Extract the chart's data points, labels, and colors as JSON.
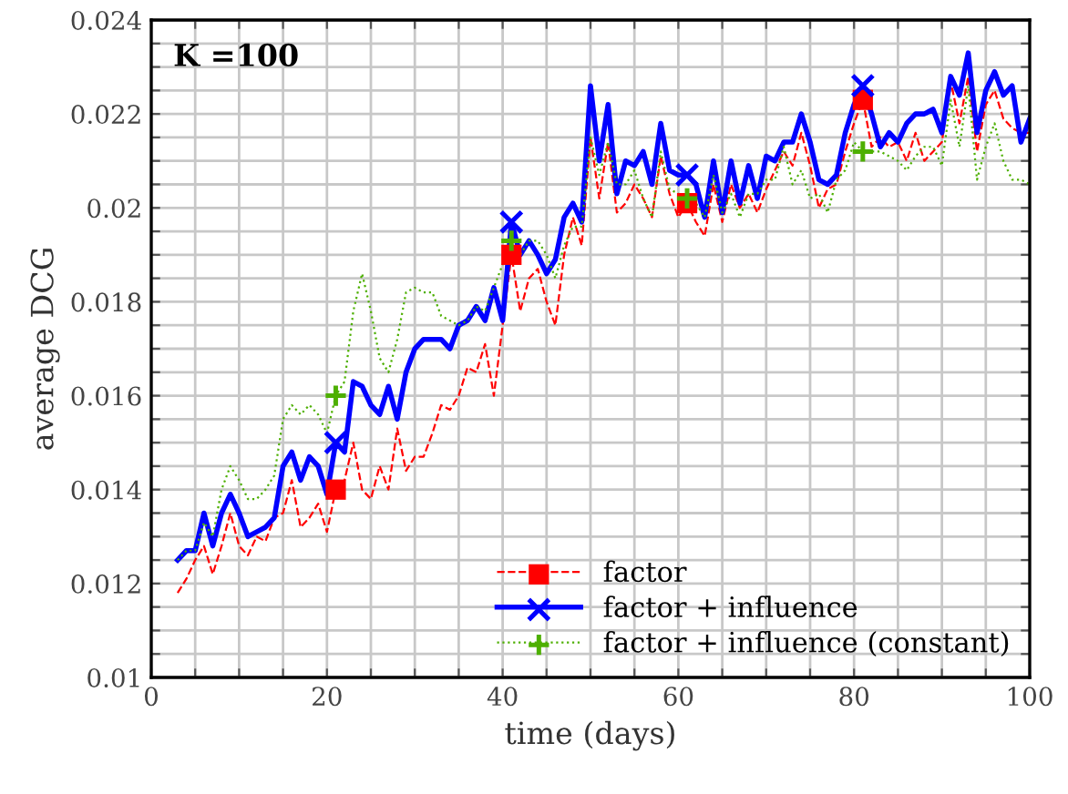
{
  "chart_data": {
    "type": "line",
    "xlabel": "time (days)",
    "ylabel": "average DCG",
    "annotations": [
      "K =100"
    ],
    "x": [
      3,
      4,
      5,
      6,
      7,
      8,
      9,
      10,
      11,
      12,
      13,
      14,
      15,
      16,
      17,
      18,
      19,
      20,
      21,
      22,
      23,
      24,
      25,
      26,
      27,
      28,
      29,
      30,
      31,
      32,
      33,
      34,
      35,
      36,
      37,
      38,
      39,
      40,
      41,
      42,
      43,
      44,
      45,
      46,
      47,
      48,
      49,
      50,
      51,
      52,
      53,
      54,
      55,
      56,
      57,
      58,
      59,
      60,
      61,
      62,
      63,
      64,
      65,
      66,
      67,
      68,
      69,
      70,
      71,
      72,
      73,
      74,
      75,
      76,
      77,
      78,
      79,
      80,
      81,
      82,
      83,
      84,
      85,
      86,
      87,
      88,
      89,
      90,
      91,
      92,
      93,
      94,
      95,
      96,
      97,
      98,
      99,
      100
    ],
    "series": [
      {
        "name": "factor",
        "color": "#ff0000",
        "line_style": "dashed",
        "values": [
          0.0118,
          0.0121,
          0.0125,
          0.0128,
          0.0122,
          0.0128,
          0.0135,
          0.0128,
          0.0126,
          0.013,
          0.0129,
          0.0134,
          0.0135,
          0.0142,
          0.0132,
          0.0134,
          0.0137,
          0.0131,
          0.014,
          0.0142,
          0.015,
          0.014,
          0.0138,
          0.0145,
          0.014,
          0.0153,
          0.0144,
          0.0147,
          0.0147,
          0.0152,
          0.0158,
          0.0157,
          0.016,
          0.0166,
          0.0165,
          0.0171,
          0.016,
          0.0175,
          0.019,
          0.0178,
          0.0185,
          0.0187,
          0.018,
          0.0175,
          0.019,
          0.0198,
          0.0192,
          0.0215,
          0.0202,
          0.0214,
          0.0199,
          0.0201,
          0.0205,
          0.0202,
          0.0198,
          0.0211,
          0.0203,
          0.0198,
          0.0201,
          0.0197,
          0.0194,
          0.0205,
          0.0197,
          0.0205,
          0.02,
          0.0203,
          0.0199,
          0.0204,
          0.0208,
          0.0212,
          0.0209,
          0.0216,
          0.0209,
          0.02,
          0.0204,
          0.0205,
          0.0212,
          0.0218,
          0.0223,
          0.0213,
          0.0215,
          0.0213,
          0.0214,
          0.021,
          0.0216,
          0.021,
          0.0212,
          0.0214,
          0.0227,
          0.0218,
          0.0228,
          0.0212,
          0.0222,
          0.0225,
          0.0219,
          0.0217,
          0.0216,
          0.0216
        ]
      },
      {
        "type": "scatter",
        "color": "#ff0000",
        "marker": "square",
        "x": [
          21,
          41,
          61,
          81
        ],
        "values": [
          0.014,
          0.019,
          0.0201,
          0.0223
        ]
      },
      {
        "name": "factor + influence",
        "color": "#0000ff",
        "line_style": "solid",
        "values": [
          0.0125,
          0.0127,
          0.0127,
          0.0135,
          0.0128,
          0.0135,
          0.0139,
          0.0135,
          0.013,
          0.0131,
          0.0132,
          0.0134,
          0.0145,
          0.0148,
          0.0142,
          0.0147,
          0.0145,
          0.0139,
          0.015,
          0.0148,
          0.0163,
          0.0162,
          0.0158,
          0.0156,
          0.0162,
          0.0155,
          0.0165,
          0.017,
          0.0172,
          0.0172,
          0.0172,
          0.017,
          0.0175,
          0.0176,
          0.0179,
          0.0176,
          0.0183,
          0.0176,
          0.0197,
          0.019,
          0.0193,
          0.019,
          0.0186,
          0.0189,
          0.0198,
          0.0201,
          0.0197,
          0.0226,
          0.021,
          0.0222,
          0.0203,
          0.021,
          0.0209,
          0.0212,
          0.0205,
          0.0218,
          0.0208,
          0.0207,
          0.0207,
          0.0205,
          0.0198,
          0.021,
          0.0199,
          0.021,
          0.0201,
          0.0209,
          0.0202,
          0.0211,
          0.021,
          0.0214,
          0.0214,
          0.022,
          0.0214,
          0.0206,
          0.0205,
          0.0207,
          0.0216,
          0.0222,
          0.0226,
          0.022,
          0.0213,
          0.0216,
          0.0214,
          0.0218,
          0.022,
          0.022,
          0.0221,
          0.0216,
          0.0228,
          0.0224,
          0.0233,
          0.0216,
          0.0225,
          0.0229,
          0.0224,
          0.0226,
          0.0214,
          0.0219
        ]
      },
      {
        "type": "scatter",
        "color": "#0000ff",
        "marker": "cross",
        "x": [
          21,
          41,
          61,
          81
        ],
        "values": [
          0.015,
          0.0197,
          0.0207,
          0.0226
        ]
      },
      {
        "name": "factor + influence (constant)",
        "color": "#4daf00",
        "line_style": "dotted",
        "values": [
          0.0125,
          0.0127,
          0.0127,
          0.0133,
          0.013,
          0.014,
          0.0145,
          0.0142,
          0.0138,
          0.0138,
          0.014,
          0.0143,
          0.0155,
          0.0158,
          0.0156,
          0.0158,
          0.0156,
          0.0152,
          0.016,
          0.0163,
          0.0178,
          0.0186,
          0.0178,
          0.0168,
          0.0165,
          0.0172,
          0.0182,
          0.0183,
          0.0182,
          0.0182,
          0.0177,
          0.0176,
          0.0175,
          0.0176,
          0.0179,
          0.0178,
          0.0183,
          0.0188,
          0.0193,
          0.019,
          0.0193,
          0.0193,
          0.019,
          0.0185,
          0.0192,
          0.0196,
          0.0196,
          0.0215,
          0.0207,
          0.0214,
          0.0205,
          0.0205,
          0.0208,
          0.0202,
          0.0198,
          0.0212,
          0.0204,
          0.0203,
          0.0202,
          0.0201,
          0.0198,
          0.0207,
          0.0199,
          0.0203,
          0.0198,
          0.0203,
          0.0203,
          0.0206,
          0.0206,
          0.0213,
          0.0205,
          0.0208,
          0.0202,
          0.0203,
          0.0199,
          0.0206,
          0.0208,
          0.0214,
          0.0212,
          0.0212,
          0.0212,
          0.0211,
          0.021,
          0.0208,
          0.0211,
          0.0213,
          0.0213,
          0.0209,
          0.0223,
          0.0213,
          0.0226,
          0.0206,
          0.0213,
          0.0218,
          0.021,
          0.0206,
          0.0206,
          0.0205
        ]
      },
      {
        "type": "scatter",
        "color": "#4daf00",
        "marker": "plus",
        "x": [
          21,
          41,
          61,
          81
        ],
        "values": [
          0.016,
          0.0193,
          0.0202,
          0.0212
        ]
      }
    ],
    "xlim": [
      0,
      100
    ],
    "ylim": [
      0.01,
      0.024
    ],
    "xticks": [
      0,
      {
        "value": 5,
        "label": null
      },
      {
        "value": 10,
        "label": null
      },
      {
        "value": 15,
        "label": null
      },
      20,
      {
        "value": 25,
        "label": null
      },
      {
        "value": 30,
        "label": null
      },
      {
        "value": 35,
        "label": null
      },
      40,
      {
        "value": 45,
        "label": null
      },
      {
        "value": 50,
        "label": null
      },
      {
        "value": 55,
        "label": null
      },
      60,
      {
        "value": 65,
        "label": null
      },
      {
        "value": 70,
        "label": null
      },
      {
        "value": 75,
        "label": null
      },
      80,
      {
        "value": 85,
        "label": null
      },
      {
        "value": 90,
        "label": null
      },
      {
        "value": 95,
        "label": null
      },
      100
    ],
    "yticks": [
      0.01,
      {
        "value": 0.0105,
        "label": null
      },
      {
        "value": 0.011,
        "label": null
      },
      {
        "value": 0.0115,
        "label": null
      },
      0.012,
      {
        "value": 0.0125,
        "label": null
      },
      {
        "value": 0.013,
        "label": null
      },
      {
        "value": 0.0135,
        "label": null
      },
      0.014,
      {
        "value": 0.0145,
        "label": null
      },
      {
        "value": 0.015,
        "label": null
      },
      {
        "value": 0.0155,
        "label": null
      },
      0.016,
      {
        "value": 0.0165,
        "label": null
      },
      {
        "value": 0.017,
        "label": null
      },
      {
        "value": 0.0175,
        "label": null
      },
      0.018,
      {
        "value": 0.0185,
        "label": null
      },
      {
        "value": 0.019,
        "label": null
      },
      {
        "value": 0.0195,
        "label": null
      },
      0.02,
      {
        "value": 0.0205,
        "label": null
      },
      {
        "value": 0.021,
        "label": null
      },
      {
        "value": 0.0215,
        "label": null
      },
      0.022,
      {
        "value": 0.0225,
        "label": null
      },
      {
        "value": 0.023,
        "label": null
      },
      {
        "value": 0.0235,
        "label": null
      },
      0.024
    ],
    "grid": true,
    "legend": "bottom right"
  }
}
